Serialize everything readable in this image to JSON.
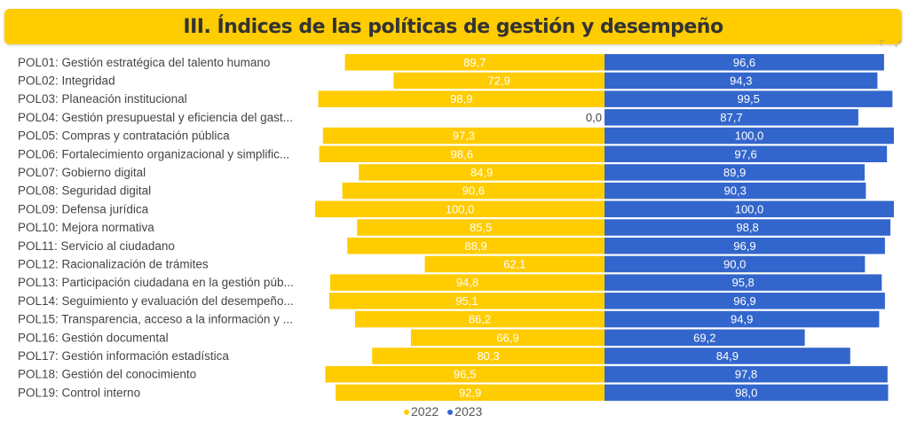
{
  "title": "III. Índices de las políticas de gestión y desempeño",
  "colors": {
    "banner": "#FFCC00",
    "s2022": "#FFCC00",
    "s2023": "#3366CC"
  },
  "icons": [
    "filter-icon",
    "expand-icon"
  ],
  "chart_data": {
    "type": "bar",
    "orientation": "horizontal-diverging",
    "categories": [
      "POL01: Gestión estratégica del talento humano",
      "POL02: Integridad",
      "POL03: Planeación institucional",
      "POL04: Gestión presupuestal y eficiencia del gast...",
      "POL05: Compras y contratación pública",
      "POL06: Fortalecimiento organizacional y simplific...",
      "POL07: Gobierno digital",
      "POL08: Seguridad digital",
      "POL09: Defensa jurídica",
      "POL10: Mejora normativa",
      "POL11: Servicio al ciudadano",
      "POL12: Racionalización de trámites",
      "POL13: Participación ciudadana en la gestión púb...",
      "POL14: Seguimiento y evaluación del desempeño...",
      "POL15: Transparencia, acceso a la información y ...",
      "POL16: Gestión documental",
      "POL17: Gestión información estadística",
      "POL18: Gestión del conocimiento",
      "POL19: Control interno"
    ],
    "series": [
      {
        "name": "2022",
        "values": [
          89.7,
          72.9,
          98.9,
          0.0,
          97.3,
          98.6,
          84.9,
          90.6,
          100.0,
          85.5,
          88.9,
          62.1,
          94.8,
          95.1,
          86.2,
          66.9,
          80.3,
          96.5,
          92.9
        ]
      },
      {
        "name": "2023",
        "values": [
          96.6,
          94.3,
          99.5,
          87.7,
          100.0,
          97.6,
          89.9,
          90.3,
          100.0,
          98.8,
          96.9,
          90.0,
          95.8,
          96.9,
          94.9,
          69.2,
          84.9,
          97.8,
          98.0
        ]
      }
    ],
    "xlim": [
      0,
      100
    ],
    "legend": "bottom-left",
    "grid": false
  }
}
